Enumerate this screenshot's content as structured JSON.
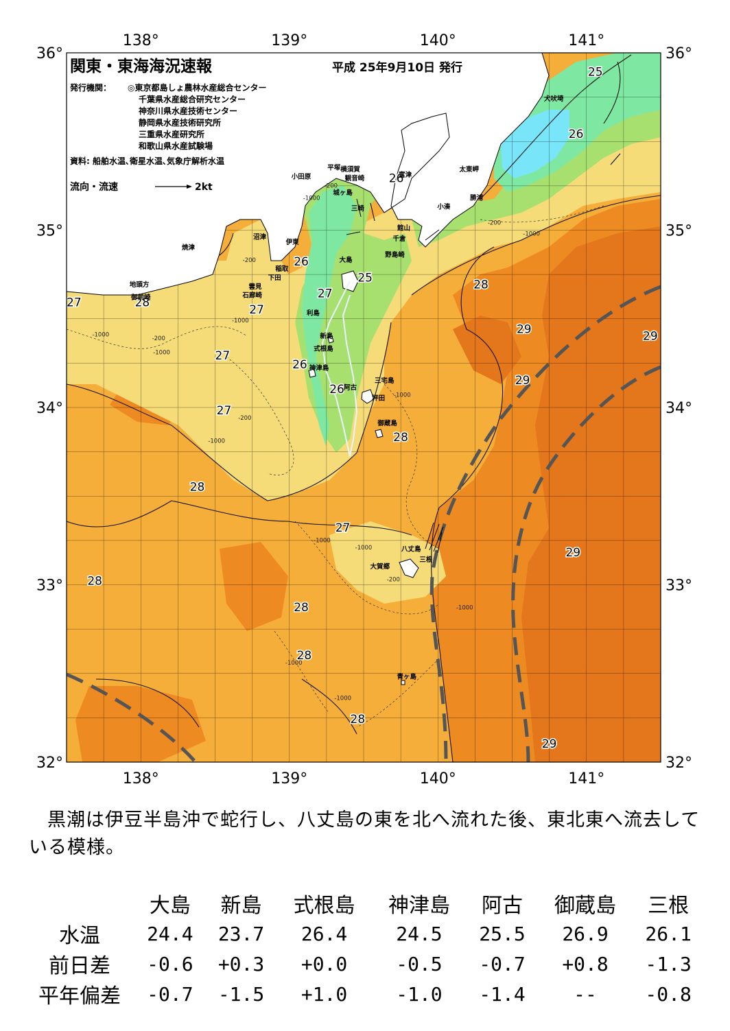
{
  "header": {
    "title": "関東・東海海況速報",
    "date": "平成 25年9月10日 発行",
    "agency_label": "発行機関：",
    "agencies": [
      "◎東京都島しょ農林水産総合センター",
      "千葉県水産総合研究センター",
      "神奈川県水産技術センター",
      "静岡県水産技術研究所",
      "三重県水産研究所",
      "和歌山県水産試験場"
    ],
    "source": "資料: 船舶水温､衛星水温､気象庁解析水温",
    "flow_legend": "流向・流速",
    "flow_scale": "2kt"
  },
  "map": {
    "lon_labels": [
      "138°",
      "139°",
      "140°",
      "141°"
    ],
    "lat_labels": [
      "36°",
      "35°",
      "34°",
      "33°",
      "32°"
    ],
    "lon_range": [
      137.5,
      141.5
    ],
    "lat_range": [
      32,
      36
    ],
    "colors": {
      "t25": "#7ee8a2",
      "t26": "#a8e070",
      "t27": "#f6dc78",
      "t28": "#f6ae3a",
      "t29": "#ee8a22",
      "t30": "#e4761c",
      "land": "#ffffff",
      "cold_water": "#78e6f8",
      "kuroshio_axis": "#555555"
    },
    "isotherm_labels": [
      {
        "text": "25",
        "lon": 141.06,
        "lat": 35.89
      },
      {
        "text": "26",
        "lon": 140.93,
        "lat": 35.54
      },
      {
        "text": "26",
        "lon": 139.72,
        "lat": 35.29
      },
      {
        "text": "26",
        "lon": 139.08,
        "lat": 34.82
      },
      {
        "text": "25",
        "lon": 139.51,
        "lat": 34.73
      },
      {
        "text": "28",
        "lon": 140.29,
        "lat": 34.69
      },
      {
        "text": "27",
        "lon": 137.55,
        "lat": 34.59
      },
      {
        "text": "28",
        "lon": 138.01,
        "lat": 34.59
      },
      {
        "text": "27",
        "lon": 139.24,
        "lat": 34.64
      },
      {
        "text": "27",
        "lon": 138.78,
        "lat": 34.55
      },
      {
        "text": "29",
        "lon": 140.58,
        "lat": 34.44
      },
      {
        "text": "29",
        "lon": 141.43,
        "lat": 34.4
      },
      {
        "text": "27",
        "lon": 138.55,
        "lat": 34.29
      },
      {
        "text": "26",
        "lon": 139.07,
        "lat": 34.24
      },
      {
        "text": "29",
        "lon": 140.57,
        "lat": 34.15
      },
      {
        "text": "26",
        "lon": 139.32,
        "lat": 34.1
      },
      {
        "text": "27",
        "lon": 138.56,
        "lat": 33.98
      },
      {
        "text": "28",
        "lon": 139.75,
        "lat": 33.83
      },
      {
        "text": "28",
        "lon": 138.38,
        "lat": 33.55
      },
      {
        "text": "27",
        "lon": 139.36,
        "lat": 33.32
      },
      {
        "text": "29",
        "lon": 140.91,
        "lat": 33.18
      },
      {
        "text": "28",
        "lon": 137.69,
        "lat": 33.02
      },
      {
        "text": "28",
        "lon": 139.08,
        "lat": 32.87
      },
      {
        "text": "28",
        "lon": 139.1,
        "lat": 32.6
      },
      {
        "text": "28",
        "lon": 139.46,
        "lat": 32.24
      },
      {
        "text": "29",
        "lon": 140.75,
        "lat": 32.1
      }
    ],
    "place_labels": [
      {
        "text": "犬吠埼",
        "lon": 140.78,
        "lat": 35.73
      },
      {
        "text": "小田原",
        "lon": 139.08,
        "lat": 35.29
      },
      {
        "text": "平塚",
        "lon": 139.3,
        "lat": 35.34
      },
      {
        "text": "横須賀",
        "lon": 139.41,
        "lat": 35.33
      },
      {
        "text": "観音崎",
        "lon": 139.44,
        "lat": 35.28
      },
      {
        "text": "富津",
        "lon": 139.78,
        "lat": 35.3
      },
      {
        "text": "太東岬",
        "lon": 140.21,
        "lat": 35.33
      },
      {
        "text": "勝浦",
        "lon": 140.26,
        "lat": 35.17
      },
      {
        "text": "小湊",
        "lon": 140.04,
        "lat": 35.12
      },
      {
        "text": "城ヶ島",
        "lon": 139.36,
        "lat": 35.2
      },
      {
        "text": "三崎",
        "lon": 139.46,
        "lat": 35.11
      },
      {
        "text": "館山",
        "lon": 139.77,
        "lat": 35.0
      },
      {
        "text": "千倉",
        "lon": 139.74,
        "lat": 34.94
      },
      {
        "text": "野島崎",
        "lon": 139.71,
        "lat": 34.85
      },
      {
        "text": "沼津",
        "lon": 138.8,
        "lat": 34.95
      },
      {
        "text": "伊東",
        "lon": 139.02,
        "lat": 34.92
      },
      {
        "text": "焼津",
        "lon": 138.32,
        "lat": 34.89
      },
      {
        "text": "大島",
        "lon": 139.38,
        "lat": 34.82
      },
      {
        "text": "稲取",
        "lon": 138.95,
        "lat": 34.77
      },
      {
        "text": "下田",
        "lon": 138.9,
        "lat": 34.72
      },
      {
        "text": "雲見",
        "lon": 138.77,
        "lat": 34.67
      },
      {
        "text": "石廊崎",
        "lon": 138.75,
        "lat": 34.62
      },
      {
        "text": "地頭方",
        "lon": 137.99,
        "lat": 34.68
      },
      {
        "text": "御前崎",
        "lon": 138.0,
        "lat": 34.61
      },
      {
        "text": "利島",
        "lon": 139.16,
        "lat": 34.52
      },
      {
        "text": "新島",
        "lon": 139.25,
        "lat": 34.39
      },
      {
        "text": "式根島",
        "lon": 139.23,
        "lat": 34.32
      },
      {
        "text": "神津島",
        "lon": 139.2,
        "lat": 34.21
      },
      {
        "text": "三宅島",
        "lon": 139.64,
        "lat": 34.14
      },
      {
        "text": "阿古",
        "lon": 139.41,
        "lat": 34.1
      },
      {
        "text": "坪田",
        "lon": 139.6,
        "lat": 34.04
      },
      {
        "text": "御蔵島",
        "lon": 139.66,
        "lat": 33.9
      },
      {
        "text": "八丈島",
        "lon": 139.82,
        "lat": 33.19
      },
      {
        "text": "三根",
        "lon": 139.92,
        "lat": 33.13
      },
      {
        "text": "大賀郷",
        "lon": 139.61,
        "lat": 33.09
      },
      {
        "text": "青ヶ島",
        "lon": 139.79,
        "lat": 32.47
      }
    ],
    "depth_labels": [
      {
        "text": "-200",
        "lon": 139.28,
        "lat": 35.24
      },
      {
        "text": "-1000",
        "lon": 139.15,
        "lat": 35.17
      },
      {
        "text": "-200",
        "lon": 140.38,
        "lat": 35.03
      },
      {
        "text": "-1000",
        "lon": 140.63,
        "lat": 34.97
      },
      {
        "text": "-200",
        "lon": 138.73,
        "lat": 34.82
      },
      {
        "text": "-1000",
        "lon": 138.67,
        "lat": 34.48
      },
      {
        "text": "-200",
        "lon": 138.12,
        "lat": 34.38
      },
      {
        "text": "-1000",
        "lon": 137.73,
        "lat": 34.4
      },
      {
        "text": "-1000",
        "lon": 138.14,
        "lat": 34.3
      },
      {
        "text": "-200",
        "lon": 138.7,
        "lat": 33.93
      },
      {
        "text": "-1000",
        "lon": 138.51,
        "lat": 33.8
      },
      {
        "text": "-1000",
        "lon": 139.76,
        "lat": 34.06
      },
      {
        "text": "-1000",
        "lon": 139.22,
        "lat": 33.24
      },
      {
        "text": "-1000",
        "lon": 139.5,
        "lat": 33.2
      },
      {
        "text": "-200",
        "lon": 139.7,
        "lat": 33.02
      },
      {
        "text": "-1000",
        "lon": 140.18,
        "lat": 32.86
      },
      {
        "text": "-1000",
        "lon": 139.03,
        "lat": 32.55
      },
      {
        "text": "-1000",
        "lon": 139.36,
        "lat": 32.35
      }
    ]
  },
  "summary": {
    "text": "黒潮は伊豆半島沖で蛇行し、八丈島の東を北へ流れた後、東北東へ流去している模様。"
  },
  "table": {
    "stations": [
      "大島",
      "新島",
      "式根島",
      "神津島",
      "阿古",
      "御蔵島",
      "三根"
    ],
    "rows": [
      {
        "label": "水温",
        "values": [
          "24.4",
          "23.7",
          "26.4",
          "24.5",
          "25.5",
          "26.9",
          "26.1"
        ]
      },
      {
        "label": "前日差",
        "values": [
          "-0.6",
          "+0.3",
          "+0.0",
          "-0.5",
          "-0.7",
          "+0.8",
          "-1.3"
        ]
      },
      {
        "label": "平年偏差",
        "values": [
          "-0.7",
          "-1.5",
          "+1.0",
          "-1.0",
          "-1.4",
          "--",
          "-0.8"
        ]
      }
    ]
  }
}
